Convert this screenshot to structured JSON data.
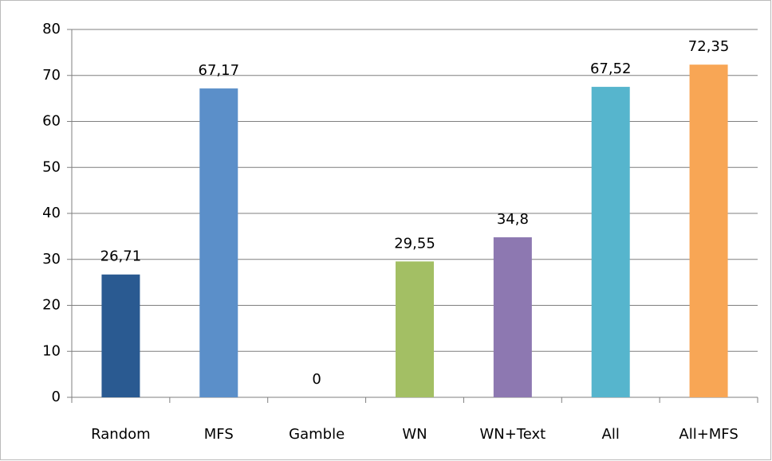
{
  "chart_data": {
    "type": "bar",
    "categories": [
      "Random",
      "MFS",
      "Gamble",
      "WN",
      "WN+Text",
      "All",
      "All+MFS"
    ],
    "values": [
      26.71,
      67.17,
      0,
      29.55,
      34.8,
      67.52,
      72.35
    ],
    "value_labels": [
      "26,71",
      "67,17",
      "0",
      "29,55",
      "34,8",
      "67,52",
      "72,35"
    ],
    "colors": [
      "#2a5a91",
      "#5b8fc9",
      "#c0504d",
      "#a3bf64",
      "#8d78b1",
      "#56b5cd",
      "#f8a655"
    ],
    "ylim": [
      0,
      80
    ],
    "yticks": [
      0,
      10,
      20,
      30,
      40,
      50,
      60,
      70,
      80
    ],
    "grid": true
  }
}
